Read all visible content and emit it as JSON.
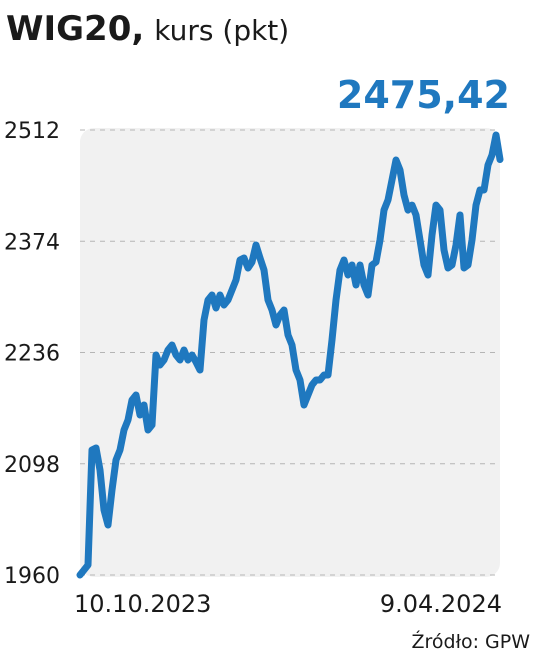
{
  "chart_data": {
    "type": "line",
    "title": "WIG20,",
    "subtitle": "kurs (pkt)",
    "source": "Źródło: GPW",
    "color": "#1f78bf",
    "categories": [
      "10.10.2023",
      null,
      null,
      null,
      null,
      null,
      null,
      null,
      null,
      null,
      null,
      null,
      null,
      null,
      null,
      null,
      null,
      null,
      null,
      null,
      null,
      null,
      null,
      null,
      null,
      null,
      null,
      null,
      null,
      null,
      null,
      null,
      null,
      null,
      null,
      null,
      null,
      null,
      null,
      null,
      null,
      null,
      null,
      null,
      null,
      null,
      null,
      null,
      null,
      null,
      null,
      null,
      null,
      null,
      null,
      null,
      null,
      null,
      null,
      null,
      null,
      null,
      null,
      null,
      null,
      null,
      null,
      null,
      null,
      null,
      null,
      null,
      null,
      null,
      null,
      null,
      null,
      null,
      null,
      null,
      null,
      null,
      null,
      null,
      null,
      null,
      null,
      null,
      null,
      null,
      null,
      null,
      null,
      null,
      null,
      null,
      null,
      null,
      null,
      null,
      null,
      null,
      null,
      null,
      null,
      "9.04.2024"
    ],
    "values": [
      1960,
      1966.2,
      1972.4,
      2115.1,
      2117.5,
      2090.2,
      2040.6,
      2022.0,
      2065.4,
      2102.6,
      2115.1,
      2139.9,
      2152.3,
      2177.1,
      2183.3,
      2158.5,
      2170.9,
      2139.9,
      2146.1,
      2232.9,
      2220.5,
      2226.7,
      2239.1,
      2245.3,
      2232.9,
      2226.7,
      2239.1,
      2226.7,
      2232.9,
      2224.2,
      2214.3,
      2276.3,
      2301.1,
      2307.3,
      2291.2,
      2307.3,
      2294.9,
      2301.1,
      2313.5,
      2325.9,
      2350.7,
      2353.2,
      2340.8,
      2348.2,
      2369.3,
      2353.2,
      2338.3,
      2301.1,
      2288.7,
      2270.1,
      2282.5,
      2288.7,
      2257.7,
      2245.3,
      2214.3,
      2201.9,
      2170.9,
      2183.3,
      2195.7,
      2201.9,
      2201.9,
      2208.1,
      2208.1,
      2251.5,
      2301.1,
      2338.3,
      2350.7,
      2332.1,
      2344.5,
      2319.7,
      2344.5,
      2319.7,
      2307.3,
      2344.5,
      2348.2,
      2375.5,
      2412.7,
      2425.2,
      2450.0,
      2474.8,
      2462.4,
      2431.4,
      2412.7,
      2418.9,
      2406.5,
      2375.5,
      2344.5,
      2332.1,
      2381.7,
      2418.9,
      2412.7,
      2363.1,
      2340.8,
      2344.5,
      2369.3,
      2406.5,
      2340.8,
      2344.5,
      2375.5,
      2418.9,
      2437.6,
      2437.6,
      2468.6,
      2481.0,
      2505.8,
      2475.42
    ],
    "value_labels": [
      null,
      null,
      null,
      null,
      null,
      null,
      null,
      null,
      null,
      null,
      null,
      null,
      null,
      null,
      null,
      null,
      null,
      null,
      null,
      null,
      null,
      null,
      null,
      null,
      null,
      null,
      null,
      null,
      null,
      null,
      null,
      null,
      null,
      null,
      null,
      null,
      null,
      null,
      null,
      null,
      null,
      null,
      null,
      null,
      null,
      null,
      null,
      null,
      null,
      null,
      null,
      null,
      null,
      null,
      null,
      null,
      null,
      null,
      null,
      null,
      null,
      null,
      null,
      null,
      null,
      null,
      null,
      null,
      null,
      null,
      null,
      null,
      null,
      null,
      null,
      null,
      null,
      null,
      null,
      null,
      null,
      null,
      null,
      null,
      null,
      null,
      null,
      null,
      null,
      null,
      null,
      null,
      null,
      null,
      null,
      null,
      null,
      null,
      null,
      null,
      null,
      null,
      null,
      null,
      null,
      "2475,42"
    ],
    "ylim": [
      1960,
      2512
    ],
    "yticks": [
      1960,
      2098,
      2236,
      2374,
      2512
    ],
    "grid": true
  }
}
